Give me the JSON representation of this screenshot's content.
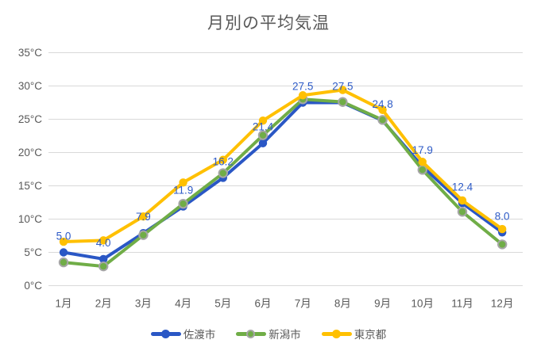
{
  "colors": {
    "background": "#ffffff",
    "title_text": "#595959",
    "axis_text": "#595959",
    "gridline": "#d9d9d9",
    "data_label": "#2e5bc7"
  },
  "chart_data": {
    "type": "line",
    "title": "月別の平均気温",
    "categories": [
      "1月",
      "2月",
      "3月",
      "4月",
      "5月",
      "6月",
      "7月",
      "8月",
      "9月",
      "10月",
      "11月",
      "12月"
    ],
    "series": [
      {
        "key": "sado",
        "name": "佐渡市",
        "color": "#2a57c5",
        "values": [
          5.0,
          4.0,
          7.9,
          11.9,
          16.2,
          21.4,
          27.5,
          27.5,
          24.8,
          17.9,
          12.4,
          8.0
        ],
        "data_labels": true
      },
      {
        "key": "niigata",
        "name": "新潟市",
        "color": "#70ad47",
        "marker_outline": "#a6a6a6",
        "values": [
          3.5,
          2.9,
          7.6,
          12.3,
          16.9,
          22.6,
          28.0,
          27.6,
          24.9,
          17.4,
          11.1,
          6.2
        ],
        "data_labels": false
      },
      {
        "key": "tokyo",
        "name": "東京都",
        "color": "#ffc000",
        "values": [
          6.6,
          6.8,
          10.4,
          15.5,
          18.9,
          24.8,
          28.6,
          29.4,
          26.4,
          18.6,
          12.8,
          8.5
        ],
        "data_labels": false
      }
    ],
    "y_axis": {
      "min": 0,
      "max": 35,
      "step": 5,
      "unit": "°C"
    },
    "data_label_decimals": 1,
    "grid": true,
    "legend_position": "bottom"
  }
}
